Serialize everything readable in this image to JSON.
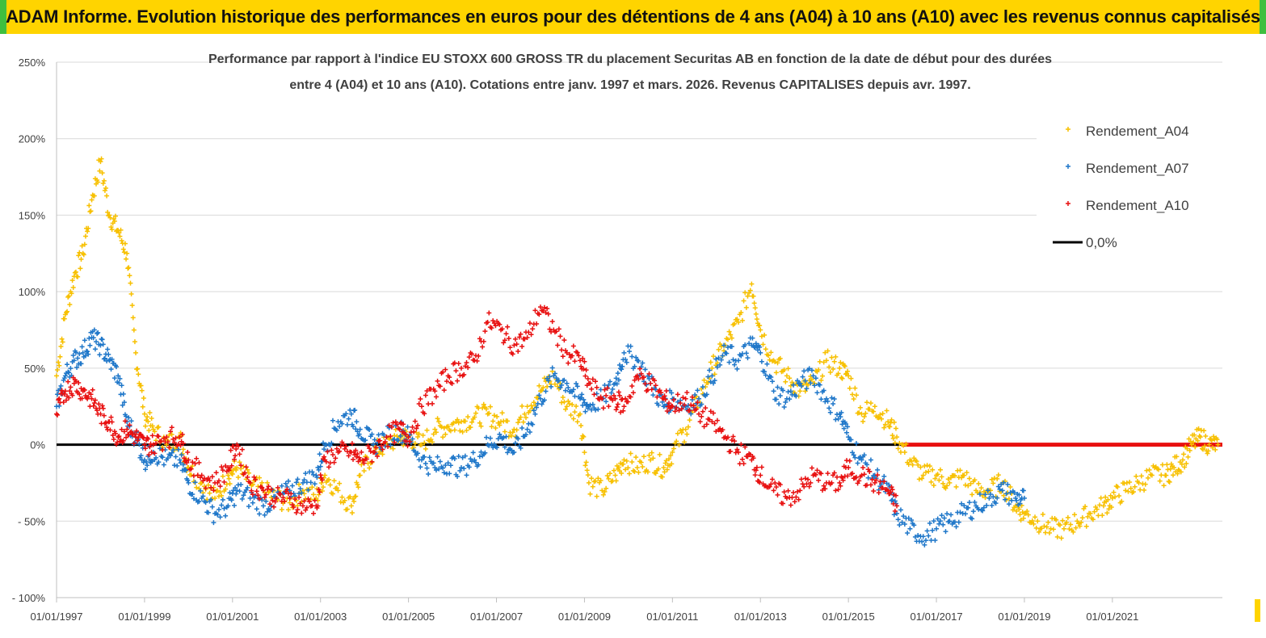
{
  "banner": {
    "title": "ADAM Informe. Evolution historique des performances en euros pour des détentions de 4 ans (A04) à 10 ans (A10) avec les revenus connus capitalisés"
  },
  "chart_data": {
    "type": "scatter",
    "title_line1": "Performance par rapport à l'indice EU STOXX 600 GROSS TR  du placement Securitas AB en fonction de la date de début pour des durées",
    "title_line2": "entre 4 (A04) et 10 ans (A10). Cotations entre janv. 1997 et mars. 2026. Revenus CAPITALISES depuis avr. 1997.",
    "ylim": [
      -100,
      250
    ],
    "y_ticks": [
      -100,
      -50,
      0,
      50,
      100,
      150,
      200,
      250
    ],
    "y_tick_labels": [
      "- 100%",
      "- 50%",
      "0%",
      "50%",
      "100%",
      "150%",
      "200%",
      "250%"
    ],
    "xlim": [
      1997.0,
      2023.5
    ],
    "x_ticks": [
      1997,
      1999,
      2001,
      2003,
      2005,
      2007,
      2009,
      2011,
      2013,
      2015,
      2017,
      2019,
      2021
    ],
    "x_tick_labels": [
      "01/01/1997",
      "01/01/1999",
      "01/01/2001",
      "01/01/2003",
      "01/01/2005",
      "01/01/2007",
      "01/01/2009",
      "01/01/2011",
      "01/01/2013",
      "01/01/2015",
      "01/01/2017",
      "01/01/2019",
      "01/01/2021"
    ],
    "grid": "horizontal",
    "legend_position": "top-right",
    "series": [
      {
        "name": "Rendement_A04",
        "color": "#f7c000",
        "marker": "+",
        "x": [
          1997.0,
          1997.2,
          1997.4,
          1997.6,
          1997.8,
          1998.0,
          1998.2,
          1998.4,
          1998.6,
          1998.8,
          1999.0,
          1999.2,
          1999.5,
          1999.8,
          2000.0,
          2000.3,
          2000.6,
          2000.9,
          2001.1,
          2001.4,
          2001.7,
          2002.0,
          2002.3,
          2002.6,
          2002.9,
          2003.1,
          2003.4,
          2003.7,
          2003.9,
          2004.2,
          2004.5,
          2004.8,
          2005.0,
          2005.3,
          2005.6,
          2005.9,
          2006.2,
          2006.5,
          2006.8,
          2007.1,
          2007.4,
          2007.7,
          2008.0,
          2008.3,
          2008.6,
          2008.9,
          2009.1,
          2009.4,
          2009.7,
          2009.9,
          2010.2,
          2010.5,
          2010.8,
          2011.0,
          2011.3,
          2011.6,
          2011.9,
          2012.2,
          2012.5,
          2012.8,
          2013.0,
          2013.3,
          2013.6,
          2013.9,
          2014.2,
          2014.5,
          2014.8,
          2015.0,
          2015.3,
          2015.6,
          2015.9,
          2016.1,
          2016.4,
          2016.7,
          2017.0,
          2017.3,
          2017.6,
          2017.9,
          2018.2,
          2018.5,
          2018.8,
          2019.0,
          2019.3,
          2019.6,
          2019.9,
          2020.2,
          2020.5,
          2020.8,
          2021.0,
          2021.3,
          2021.6,
          2021.9,
          2022.2,
          2022.4,
          2022.6,
          2022.8,
          2023.0,
          2023.2,
          2023.4
        ],
        "y": [
          45,
          85,
          110,
          125,
          160,
          185,
          150,
          140,
          125,
          60,
          20,
          10,
          0,
          5,
          -15,
          -25,
          -35,
          -20,
          -15,
          -25,
          -30,
          -35,
          -38,
          -30,
          -35,
          -20,
          -30,
          -40,
          -20,
          -5,
          0,
          5,
          5,
          0,
          10,
          12,
          15,
          18,
          20,
          15,
          10,
          25,
          35,
          45,
          25,
          20,
          -25,
          -30,
          -20,
          -10,
          -15,
          -10,
          -15,
          -5,
          10,
          30,
          50,
          65,
          80,
          105,
          75,
          55,
          45,
          35,
          40,
          55,
          50,
          45,
          20,
          25,
          15,
          5,
          -10,
          -20,
          -20,
          -25,
          -20,
          -30,
          -30,
          -25,
          -40,
          -45,
          -50,
          -55,
          -55,
          -50,
          -45,
          -40,
          -35,
          -30,
          -25,
          -20,
          -20,
          -15,
          -10,
          0,
          5,
          0,
          0
        ]
      },
      {
        "name": "Rendement_A07",
        "color": "#1f77c9",
        "marker": "+",
        "x": [
          1997.0,
          1997.2,
          1997.4,
          1997.6,
          1997.8,
          1998.0,
          1998.2,
          1998.4,
          1998.6,
          1998.8,
          1999.0,
          1999.2,
          1999.5,
          1999.8,
          2000.0,
          2000.3,
          2000.6,
          2000.9,
          2001.1,
          2001.4,
          2001.7,
          2002.0,
          2002.3,
          2002.6,
          2002.9,
          2003.1,
          2003.4,
          2003.7,
          2003.9,
          2004.2,
          2004.5,
          2004.8,
          2005.0,
          2005.3,
          2005.6,
          2005.9,
          2006.2,
          2006.5,
          2006.8,
          2007.1,
          2007.4,
          2007.7,
          2008.0,
          2008.3,
          2008.6,
          2008.9,
          2009.1,
          2009.4,
          2009.7,
          2009.9,
          2010.2,
          2010.5,
          2010.8,
          2011.0,
          2011.3,
          2011.6,
          2011.9,
          2012.2,
          2012.5,
          2012.8,
          2013.0,
          2013.3,
          2013.6,
          2013.9,
          2014.2,
          2014.5,
          2014.8,
          2015.0,
          2015.3,
          2015.6,
          2015.9,
          2016.1,
          2016.4,
          2016.7,
          2017.0,
          2017.3,
          2017.6,
          2017.9,
          2018.2,
          2018.5,
          2018.8,
          2019.0
        ],
        "y": [
          25,
          45,
          55,
          60,
          70,
          65,
          55,
          45,
          15,
          5,
          -10,
          -5,
          -10,
          -10,
          -25,
          -35,
          -45,
          -40,
          -30,
          -35,
          -40,
          -35,
          -30,
          -25,
          -20,
          0,
          15,
          20,
          10,
          0,
          5,
          10,
          5,
          -10,
          -15,
          -12,
          -15,
          -10,
          0,
          5,
          -5,
          10,
          30,
          45,
          40,
          30,
          25,
          30,
          40,
          60,
          55,
          40,
          25,
          30,
          25,
          30,
          45,
          60,
          55,
          65,
          60,
          35,
          30,
          40,
          45,
          30,
          20,
          5,
          -10,
          -20,
          -30,
          -45,
          -55,
          -60,
          -55,
          -50,
          -45,
          -40,
          -35,
          -30,
          -35,
          -35
        ]
      },
      {
        "name": "Rendement_A10",
        "color": "#e81010",
        "marker": "+",
        "x": [
          1997.0,
          1997.2,
          1997.4,
          1997.6,
          1997.8,
          1998.0,
          1998.2,
          1998.4,
          1998.6,
          1998.8,
          1999.0,
          1999.2,
          1999.5,
          1999.8,
          2000.0,
          2000.3,
          2000.6,
          2000.9,
          2001.1,
          2001.4,
          2001.7,
          2002.0,
          2002.3,
          2002.6,
          2002.9,
          2003.1,
          2003.4,
          2003.7,
          2003.9,
          2004.2,
          2004.5,
          2004.8,
          2005.0,
          2005.3,
          2005.6,
          2005.9,
          2006.2,
          2006.5,
          2006.8,
          2007.1,
          2007.4,
          2007.7,
          2008.0,
          2008.3,
          2008.6,
          2008.9,
          2009.1,
          2009.4,
          2009.7,
          2009.9,
          2010.2,
          2010.5,
          2010.8,
          2011.0,
          2011.3,
          2011.6,
          2011.9,
          2012.2,
          2012.5,
          2012.8,
          2013.0,
          2013.3,
          2013.6,
          2013.9,
          2014.2,
          2014.5,
          2014.8,
          2015.0,
          2015.3,
          2015.6,
          2015.9,
          2016.1
        ],
        "y": [
          20,
          35,
          40,
          35,
          30,
          20,
          15,
          5,
          10,
          5,
          0,
          0,
          5,
          5,
          -10,
          -20,
          -25,
          -15,
          0,
          -25,
          -30,
          -35,
          -35,
          -40,
          -40,
          -10,
          -5,
          -5,
          -10,
          -5,
          5,
          10,
          5,
          25,
          35,
          45,
          50,
          55,
          80,
          75,
          65,
          70,
          90,
          75,
          60,
          55,
          40,
          30,
          30,
          25,
          45,
          40,
          30,
          25,
          30,
          20,
          15,
          5,
          -5,
          -10,
          -20,
          -30,
          -35,
          -30,
          -20,
          -25,
          -25,
          -15,
          -20,
          -25,
          -30,
          -40
        ]
      },
      {
        "name": "0,0%",
        "color": "#000000",
        "marker": "line",
        "x": [
          1997.0,
          2016.2
        ],
        "y": [
          0,
          0
        ]
      }
    ],
    "flat_zero_segment": {
      "from_x": 2016.2,
      "to_x": 2023.5,
      "y": 0,
      "color": "#e81010"
    }
  }
}
